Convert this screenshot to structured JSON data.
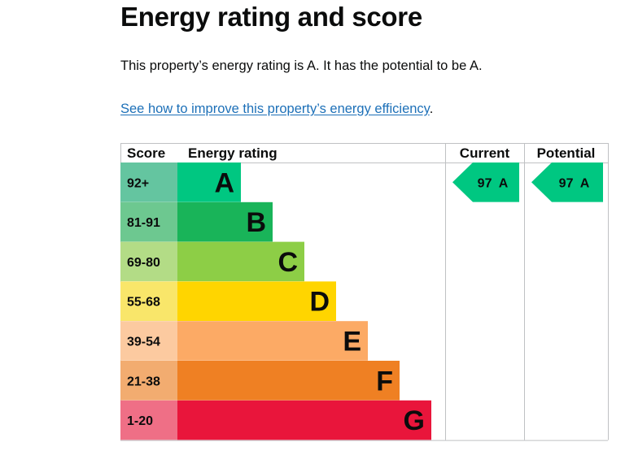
{
  "page": {
    "title": "Energy rating and score",
    "summary": "This property’s energy rating is A. It has the potential to be A.",
    "link_text": "See how to improve this property’s energy efficiency",
    "link_suffix": "."
  },
  "chart_data": {
    "type": "bar",
    "headers": {
      "score": "Score",
      "rating": "Energy rating",
      "current": "Current",
      "potential": "Potential"
    },
    "bands": [
      {
        "letter": "A",
        "range": "92+",
        "color": "#00c781",
        "score_bg": "#64c5a0"
      },
      {
        "letter": "B",
        "range": "81-91",
        "color": "#19b459",
        "score_bg": "#6dc890"
      },
      {
        "letter": "C",
        "range": "69-80",
        "color": "#8dce46",
        "score_bg": "#b3dc86"
      },
      {
        "letter": "D",
        "range": "55-68",
        "color": "#ffd500",
        "score_bg": "#f9e66a"
      },
      {
        "letter": "E",
        "range": "39-54",
        "color": "#fcaa65",
        "score_bg": "#fccaa0"
      },
      {
        "letter": "F",
        "range": "21-38",
        "color": "#ef8023",
        "score_bg": "#f2ac70"
      },
      {
        "letter": "G",
        "range": "1-20",
        "color": "#e9153b",
        "score_bg": "#ef6f86"
      }
    ],
    "current": {
      "score": 97,
      "band": "A",
      "label": "97  A"
    },
    "potential": {
      "score": 97,
      "band": "A",
      "label": "97  A"
    },
    "grid": true
  }
}
